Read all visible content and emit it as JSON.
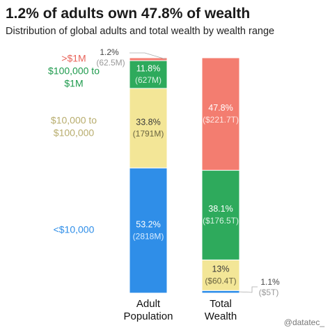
{
  "title": "1.2% of adults own 47.8% of wealth",
  "subtitle": "Distribution of global adults and total wealth by wealth range",
  "watermark": "@datatec_",
  "chart_data": {
    "type": "bar",
    "stacked": true,
    "normalized": true,
    "categories": [
      "Adult Population",
      "Total Wealth"
    ],
    "series": [
      {
        "name": "<$10,000",
        "color": "#2f8ee8",
        "values": [
          53.2,
          1.1
        ],
        "labels": [
          "53.2%",
          "1.1%"
        ],
        "sublabels": [
          "(2818M)",
          "($5T)"
        ]
      },
      {
        "name": "$10,000 to $100,000",
        "color": "#f3e697",
        "values": [
          33.8,
          13
        ],
        "labels": [
          "33.8%",
          "13%"
        ],
        "sublabels": [
          "(1791M)",
          "($60.4T)"
        ]
      },
      {
        "name": "$100,000 to $1M",
        "color": "#2eaa5c",
        "values": [
          11.8,
          38.1
        ],
        "labels": [
          "11.8%",
          "38.1%"
        ],
        "sublabels": [
          "(627M)",
          "($176.5T)"
        ]
      },
      {
        "name": ">$1M",
        "color": "#f37d70",
        "values": [
          1.2,
          47.8
        ],
        "labels": [
          "1.2%",
          "47.8%"
        ],
        "sublabels": [
          "(62.5M)",
          "($221.7T)"
        ]
      }
    ],
    "legend_labels": [
      {
        "lines": [
          ">$1M"
        ],
        "color": "#e8645a"
      },
      {
        "lines": [
          "$100,000 to",
          "$1M"
        ],
        "color": "#1d9a4c"
      },
      {
        "lines": [
          "$10,000 to",
          "$100,000"
        ],
        "color": "#b8ad6e"
      },
      {
        "lines": [
          "<$10,000"
        ],
        "color": "#2f8ee8"
      }
    ],
    "category_labels": [
      [
        "Adult",
        "Population"
      ],
      [
        "Total",
        "Wealth"
      ]
    ]
  }
}
